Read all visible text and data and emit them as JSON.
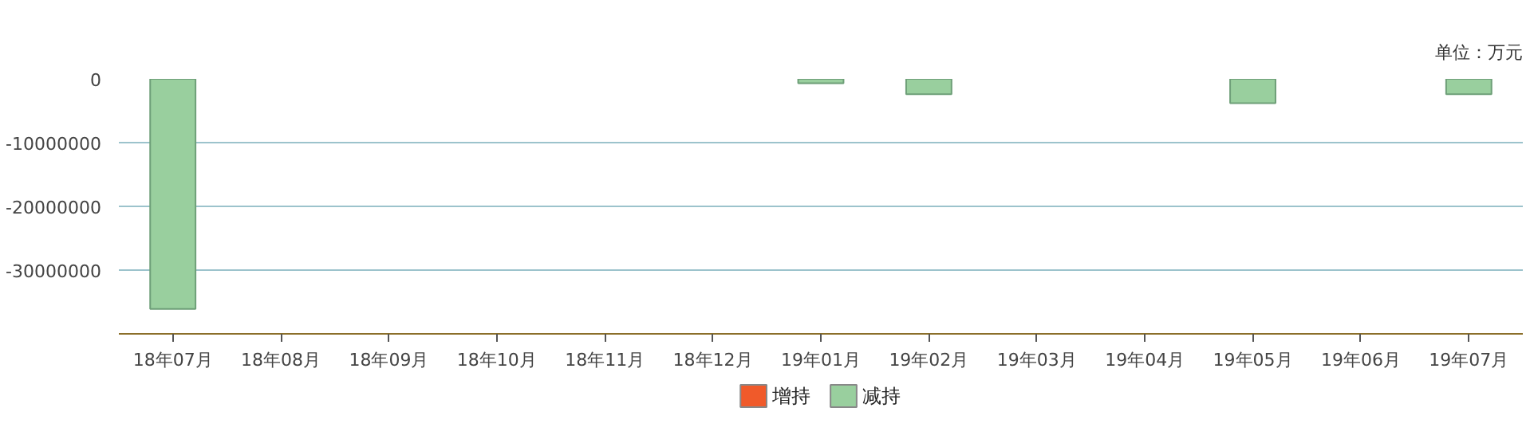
{
  "chart_data": {
    "type": "bar",
    "annotations": [
      "单位：万元"
    ],
    "categories": [
      "18年07月",
      "18年08月",
      "18年09月",
      "18年10月",
      "18年11月",
      "18年12月",
      "19年01月",
      "19年02月",
      "19年03月",
      "19年04月",
      "19年05月",
      "19年06月",
      "19年07月"
    ],
    "series": [
      {
        "name": "增持",
        "color": "#f05a2a",
        "values": [
          null,
          null,
          null,
          null,
          null,
          null,
          null,
          null,
          null,
          null,
          null,
          null,
          null
        ]
      },
      {
        "name": "减持",
        "color": "#99cf9e",
        "values": [
          -36100000,
          null,
          null,
          null,
          null,
          null,
          -700000,
          -2400000,
          null,
          null,
          -3800000,
          null,
          -2400000
        ]
      }
    ],
    "ylim": [
      -40000000,
      0
    ],
    "yticks": [
      0,
      -10000000,
      -20000000,
      -30000000
    ],
    "grid": "y",
    "legend": "bottom"
  }
}
